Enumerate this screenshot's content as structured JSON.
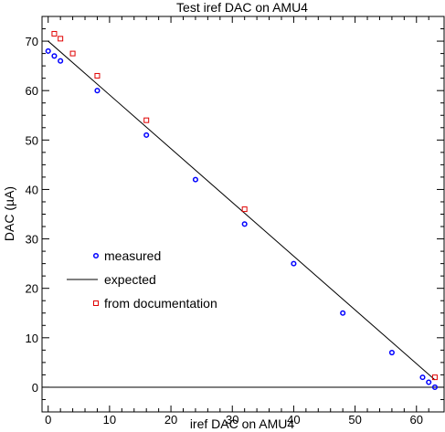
{
  "chart_data": {
    "type": "scatter",
    "title": "Test iref DAC on AMU4",
    "xlabel": "iref DAC on AMU4",
    "ylabel": "DAC (µA)",
    "xlim": [
      -1,
      64.5
    ],
    "ylim": [
      -5,
      75
    ],
    "xticks": [
      0,
      10,
      20,
      30,
      40,
      50,
      60
    ],
    "yticks": [
      0,
      10,
      20,
      30,
      40,
      50,
      60,
      70
    ],
    "grid": false,
    "legend_position": "lower-left",
    "zero_line": true,
    "series": [
      {
        "name": "measured",
        "marker": "circle",
        "color": "#0000ff",
        "points": [
          [
            0,
            68
          ],
          [
            1,
            67
          ],
          [
            2,
            66
          ],
          [
            8,
            60
          ],
          [
            16,
            51
          ],
          [
            24,
            42
          ],
          [
            32,
            33
          ],
          [
            40,
            25
          ],
          [
            48,
            15
          ],
          [
            56,
            7
          ],
          [
            61,
            2
          ],
          [
            62,
            1
          ],
          [
            63,
            0
          ]
        ]
      },
      {
        "name": "expected",
        "style": "line",
        "color": "#000000",
        "points": [
          [
            0,
            70
          ],
          [
            63,
            1.5
          ]
        ]
      },
      {
        "name": "from documentation",
        "marker": "square",
        "color": "#e00000",
        "points": [
          [
            1,
            71.5
          ],
          [
            2,
            70.5
          ],
          [
            4,
            67.5
          ],
          [
            8,
            63
          ],
          [
            16,
            54
          ],
          [
            32,
            36
          ],
          [
            63,
            2
          ]
        ]
      }
    ]
  }
}
